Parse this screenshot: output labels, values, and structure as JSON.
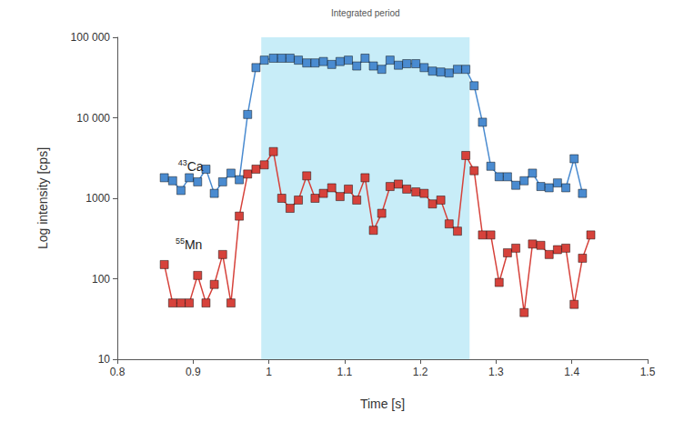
{
  "chart_data": {
    "type": "line",
    "x_label": "Time [s]",
    "y_label": "Log intensity [cps]",
    "shaded_region": {
      "label": "Integrated period",
      "x": [
        0.99,
        1.265
      ],
      "color": "#c8edf8"
    },
    "x": [
      0.862,
      0.873,
      0.884,
      0.895,
      0.906,
      0.917,
      0.928,
      0.939,
      0.95,
      0.961,
      0.972,
      0.983,
      0.994,
      1.006,
      1.017,
      1.028,
      1.039,
      1.05,
      1.061,
      1.072,
      1.083,
      1.094,
      1.105,
      1.116,
      1.127,
      1.138,
      1.149,
      1.16,
      1.171,
      1.182,
      1.194,
      1.205,
      1.216,
      1.227,
      1.238,
      1.249,
      1.26,
      1.271,
      1.282,
      1.293,
      1.304,
      1.315,
      1.326,
      1.337,
      1.348,
      1.359,
      1.37,
      1.381,
      1.392,
      1.403,
      1.414,
      1.425
    ],
    "series": [
      {
        "name": "43Ca",
        "color": "#4a8bd0",
        "marker": "square",
        "values": [
          1800,
          1650,
          1250,
          1800,
          1600,
          2300,
          1150,
          1600,
          2050,
          1700,
          11000,
          42000,
          52000,
          55000,
          55000,
          55000,
          52000,
          48000,
          48000,
          50000,
          46000,
          50000,
          52000,
          44000,
          55000,
          44000,
          40000,
          52000,
          45000,
          47000,
          47000,
          42000,
          38000,
          37000,
          36000,
          40000,
          40000,
          25000,
          8800,
          2500,
          1850,
          1850,
          1450,
          1650,
          2050,
          1400,
          1350,
          1550,
          1350,
          3100,
          1150,
          null
        ]
      },
      {
        "name": "55Mn",
        "color": "#d6423b",
        "marker": "square",
        "values": [
          150,
          50,
          50,
          50,
          110,
          50,
          85,
          200,
          50,
          600,
          2000,
          2300,
          2600,
          3800,
          1000,
          750,
          950,
          1900,
          1000,
          1150,
          1350,
          1050,
          1300,
          950,
          1800,
          400,
          650,
          1400,
          1500,
          1300,
          1200,
          1150,
          850,
          950,
          480,
          390,
          3400,
          2200,
          350,
          350,
          90,
          210,
          240,
          38,
          270,
          260,
          200,
          230,
          240,
          48,
          180,
          350
        ]
      }
    ],
    "xlim": [
      0.8,
      1.5
    ],
    "xticks": [
      0.8,
      0.9,
      1,
      1.1,
      1.2,
      1.3,
      1.4,
      1.5
    ],
    "ylim": [
      10,
      100000
    ],
    "yticks": [
      10,
      100,
      1000,
      {
        "value": 10000,
        "label": "10 000"
      },
      {
        "value": 100000,
        "label": "100 000"
      }
    ],
    "log": "y",
    "grid": false
  }
}
